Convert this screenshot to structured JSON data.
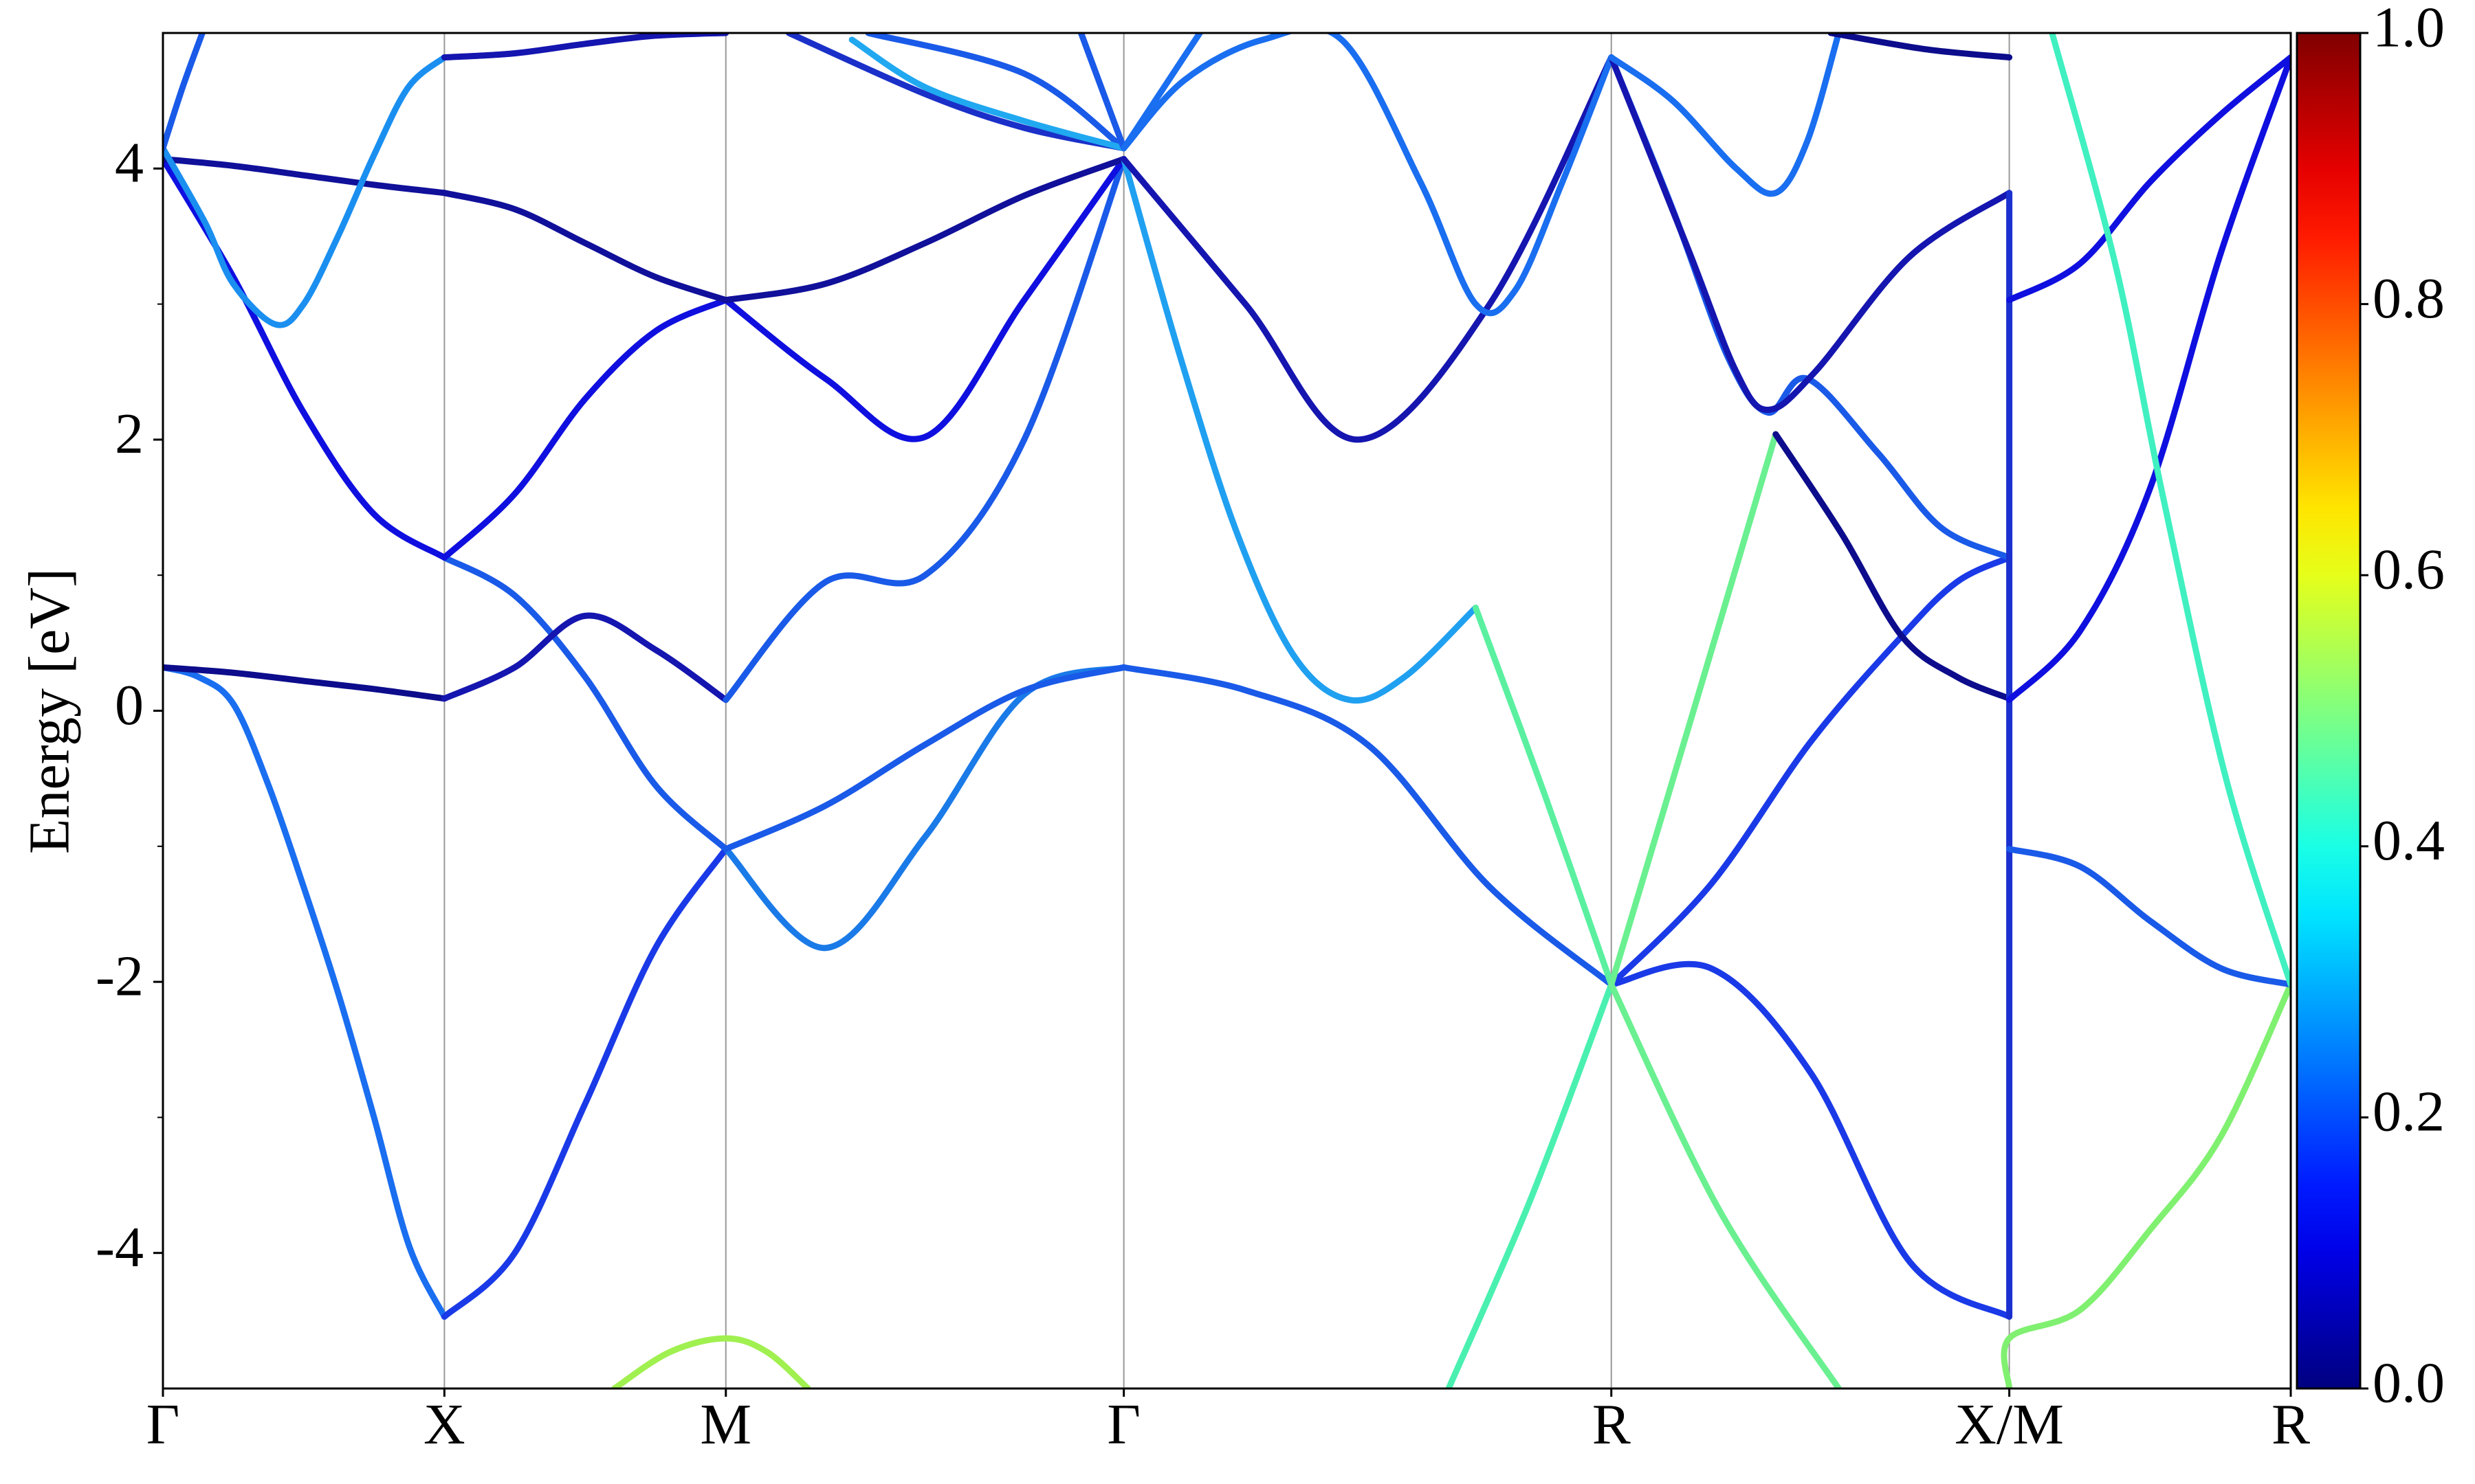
{
  "chart_data": {
    "type": "line",
    "y_label": "Energy [eV]",
    "xlim": [
      0,
      3.78
    ],
    "ylim": [
      -5,
      5
    ],
    "xticks": [
      {
        "value": 0,
        "label": "Γ"
      },
      {
        "value": 0.5,
        "label": "X"
      },
      {
        "value": 1.0,
        "label": "M"
      },
      {
        "value": 1.707,
        "label": "Γ"
      },
      {
        "value": 2.573,
        "label": "R"
      },
      {
        "value": 3.28,
        "label": "X/M"
      },
      {
        "value": 3.78,
        "label": "R"
      }
    ],
    "yticks": [
      -4,
      -2,
      0,
      2,
      4
    ],
    "yminorticks": [
      -3,
      -1,
      1,
      3
    ],
    "xgrid": true,
    "colorbar": {
      "lim": [
        0,
        1
      ],
      "colormap": "jet",
      "ticks": [
        {
          "value": 0,
          "label": "0.0"
        },
        {
          "value": 0.2,
          "label": "0.2"
        },
        {
          "value": 0.4,
          "label": "0.4"
        },
        {
          "value": 0.6,
          "label": "0.6"
        },
        {
          "value": 0.8,
          "label": "0.8"
        },
        {
          "value": 1,
          "label": "1.0"
        }
      ]
    },
    "series": [
      {
        "color": "#1a6ef0",
        "x": [
          0,
          0.0625,
          0.125,
          0.1875,
          0.25,
          0.3125,
          0.375,
          0.4375,
          0.5
        ],
        "values": [
          0.32,
          0.25,
          0.05,
          -0.55,
          -1.3,
          -2.1,
          -3.0,
          -3.95,
          -4.47
        ]
      },
      {
        "color": "#0c0c8c",
        "x": [
          0,
          0.125,
          0.25,
          0.375,
          0.5
        ],
        "values": [
          0.32,
          0.28,
          0.22,
          0.16,
          0.09
        ]
      },
      {
        "color": "#0f0fe0",
        "x": [
          0,
          0.125,
          0.25,
          0.375,
          0.5
        ],
        "values": [
          4.07,
          3.2,
          2.2,
          1.45,
          1.13
        ]
      },
      {
        "color": "#10109a",
        "x": [
          0,
          0.125,
          0.25,
          0.375,
          0.5
        ],
        "values": [
          4.07,
          4.02,
          3.95,
          3.88,
          3.82
        ]
      },
      {
        "color": "#1a8ff0",
        "x": [
          0,
          0.075,
          0.125,
          0.2,
          0.25,
          0.311,
          0.375,
          0.436,
          0.5
        ],
        "values": [
          4.15,
          3.6,
          3.15,
          2.85,
          3.0,
          3.5,
          4.1,
          4.6,
          4.82
        ]
      },
      {
        "color": "#1a5ae8",
        "x": [
          0,
          0.035,
          0.07
        ],
        "values": [
          4.15,
          4.6,
          5.0
        ]
      },
      {
        "color": "#1a3ae8",
        "x": [
          0.5,
          0.625,
          0.75,
          0.875,
          1.0
        ],
        "values": [
          -4.47,
          -4.0,
          -2.9,
          -1.75,
          -1.02
        ]
      },
      {
        "color": "#1a5ae8",
        "x": [
          0.5,
          0.625,
          0.75,
          0.875,
          1.0
        ],
        "values": [
          1.13,
          0.85,
          0.25,
          -0.55,
          -1.02
        ]
      },
      {
        "color": "#1515b0",
        "x": [
          0.5,
          0.625,
          0.75,
          0.875,
          1.0
        ],
        "values": [
          0.09,
          0.32,
          0.7,
          0.45,
          0.08
        ]
      },
      {
        "color": "#0f0fe0",
        "x": [
          0.5,
          0.625,
          0.75,
          0.875,
          1.0
        ],
        "values": [
          1.13,
          1.6,
          2.3,
          2.8,
          3.03
        ]
      },
      {
        "color": "#10109a",
        "x": [
          0.5,
          0.625,
          0.75,
          0.875,
          1.0
        ],
        "values": [
          3.82,
          3.7,
          3.45,
          3.2,
          3.03
        ]
      },
      {
        "color": "#1515b0",
        "x": [
          0.5,
          0.625,
          0.75,
          0.875,
          1.0
        ],
        "values": [
          4.82,
          4.85,
          4.92,
          4.98,
          5.0
        ]
      },
      {
        "color": "#a0f050",
        "x": [
          0.802,
          0.901,
          1.0,
          1.073,
          1.146
        ],
        "values": [
          -5.0,
          -4.73,
          -4.63,
          -4.73,
          -5.0
        ]
      },
      {
        "color": "#1a7ae8",
        "x": [
          1.0,
          1.177,
          1.354,
          1.53,
          1.707
        ],
        "values": [
          -1.02,
          -1.75,
          -0.93,
          0.12,
          0.32
        ]
      },
      {
        "color": "#1a5ae8",
        "x": [
          1.0,
          1.177,
          1.354,
          1.53,
          1.707
        ],
        "values": [
          -1.02,
          -0.7,
          -0.25,
          0.15,
          0.32
        ]
      },
      {
        "color": "#1a5ae8",
        "x": [
          1.0,
          1.177,
          1.354,
          1.53,
          1.707
        ],
        "values": [
          0.08,
          0.95,
          1.0,
          2.0,
          4.07
        ]
      },
      {
        "color": "#0f0fe0",
        "x": [
          1.0,
          1.177,
          1.354,
          1.53,
          1.707
        ],
        "values": [
          3.03,
          2.45,
          2.02,
          3.03,
          4.07
        ]
      },
      {
        "color": "#10109a",
        "x": [
          1.0,
          1.177,
          1.354,
          1.53,
          1.707
        ],
        "values": [
          3.03,
          3.15,
          3.45,
          3.8,
          4.07
        ]
      },
      {
        "color": "#1a30c8",
        "x": [
          1.112,
          1.354,
          1.53,
          1.707
        ],
        "values": [
          5.0,
          4.55,
          4.3,
          4.15
        ]
      },
      {
        "color": "#1a5ae8",
        "x": [
          1.253,
          1.53,
          1.707
        ],
        "values": [
          5.0,
          4.7,
          4.15
        ]
      },
      {
        "color": "#20a8f0",
        "x": [
          1.224,
          1.354,
          1.53,
          1.707
        ],
        "values": [
          4.95,
          4.6,
          4.35,
          4.15
        ]
      },
      {
        "color": "#1a5ae8",
        "x": [
          1.631,
          1.707
        ],
        "values": [
          5.0,
          4.15
        ]
      },
      {
        "color": "#1a5ae8",
        "x": [
          1.707,
          1.924,
          2.14,
          2.357,
          2.573
        ],
        "values": [
          0.32,
          0.15,
          -0.25,
          -1.3,
          -2.02
        ]
      },
      {
        "color": "#20a0f0",
        "x": [
          1.707,
          1.808,
          1.909,
          2.01,
          2.108,
          2.206,
          2.332
        ],
        "values": [
          4.07,
          2.6,
          1.3,
          0.4,
          0.08,
          0.25,
          0.76
        ]
      },
      {
        "color": "#5af0a0",
        "x": [
          2.332,
          2.453,
          2.573
        ],
        "values": [
          0.76,
          -0.6,
          -2.02
        ]
      },
      {
        "color": "#1515b0",
        "x": [
          1.707,
          1.923,
          2.122,
          2.357,
          2.573
        ],
        "values": [
          4.07,
          3.0,
          2.0,
          3.0,
          4.82
        ]
      },
      {
        "color": "#1a6ef0",
        "x": [
          1.707,
          1.814,
          1.954,
          2.094,
          2.234,
          2.332,
          2.402,
          2.486,
          2.573
        ],
        "values": [
          4.15,
          4.65,
          4.95,
          4.95,
          3.9,
          3.0,
          3.1,
          3.9,
          4.82
        ]
      },
      {
        "color": "#1a6ef0",
        "x": [
          1.707,
          1.842
        ],
        "values": [
          4.15,
          5.0
        ]
      },
      {
        "color": "#4af0b0",
        "x": [
          2.284,
          2.43,
          2.573
        ],
        "values": [
          -5.0,
          -3.6,
          -2.02
        ]
      },
      {
        "color": "#1a3ae8",
        "x": [
          2.573,
          2.75,
          2.927,
          3.104,
          3.28
        ],
        "values": [
          -2.02,
          -1.9,
          -2.67,
          -4.07,
          -4.47
        ]
      },
      {
        "color": "#1a3ae8",
        "x": [
          2.573,
          2.75,
          2.927,
          3.089,
          3.187,
          3.28
        ],
        "values": [
          -2.02,
          -1.28,
          -0.23,
          0.55,
          0.95,
          1.13
        ]
      },
      {
        "color": "#6af090",
        "x": [
          2.573,
          2.719,
          2.865
        ],
        "values": [
          -2.02,
          0.0,
          2.04
        ]
      },
      {
        "color": "#0c0c8c",
        "x": [
          2.865,
          2.983,
          3.089,
          3.187,
          3.28
        ],
        "values": [
          2.04,
          1.3,
          0.55,
          0.25,
          0.09
        ]
      },
      {
        "color": "#6af090",
        "x": [
          2.573,
          2.767,
          2.977
        ],
        "values": [
          -2.02,
          -3.7,
          -5.0
        ]
      },
      {
        "color": "#1a5ae8",
        "x": [
          2.573,
          2.682,
          2.781,
          2.851,
          2.921,
          3.047,
          3.159,
          3.28
        ],
        "values": [
          4.82,
          3.7,
          2.6,
          2.2,
          2.45,
          1.9,
          1.35,
          1.13
        ]
      },
      {
        "color": "#1515b0",
        "x": [
          2.573,
          2.71,
          2.795,
          2.851,
          2.935,
          3.103,
          3.28
        ],
        "values": [
          4.82,
          3.4,
          2.5,
          2.22,
          2.5,
          3.35,
          3.82
        ]
      },
      {
        "color": "#1a6ef0",
        "x": [
          2.573,
          2.682,
          2.795,
          2.865,
          2.921,
          2.977
        ],
        "values": [
          4.82,
          4.5,
          4.0,
          3.82,
          4.2,
          5.0
        ]
      },
      {
        "color": "#0c0c8c",
        "x": [
          2.963,
          3.131,
          3.28
        ],
        "values": [
          5.0,
          4.88,
          4.82
        ]
      },
      {
        "color": "#1a30d0",
        "x": [
          3.28,
          3.28
        ],
        "values": [
          -4.47,
          3.82
        ]
      },
      {
        "color": "#80f070",
        "x": [
          3.28,
          3.28,
          3.406,
          3.53,
          3.656,
          3.78
        ],
        "values": [
          -5.0,
          -4.63,
          -4.42,
          -3.83,
          -3.14,
          -2.02
        ]
      },
      {
        "color": "#1a5ae8",
        "x": [
          3.28,
          3.406,
          3.53,
          3.656,
          3.78
        ],
        "values": [
          -1.02,
          -1.15,
          -1.55,
          -1.9,
          -2.02
        ]
      },
      {
        "color": "#0f0fe0",
        "x": [
          3.28,
          3.406,
          3.53,
          3.656,
          3.78
        ],
        "values": [
          0.08,
          0.59,
          1.64,
          3.38,
          4.82
        ]
      },
      {
        "color": "#0f0fe0",
        "x": [
          3.28,
          3.406,
          3.53,
          3.656,
          3.78
        ],
        "values": [
          3.03,
          3.3,
          3.9,
          4.4,
          4.82
        ]
      },
      {
        "color": "#40f0c0",
        "x": [
          3.356,
          3.468,
          3.552,
          3.665,
          3.78
        ],
        "values": [
          5.0,
          3.3,
          1.6,
          -0.5,
          -2.02
        ]
      }
    ]
  }
}
